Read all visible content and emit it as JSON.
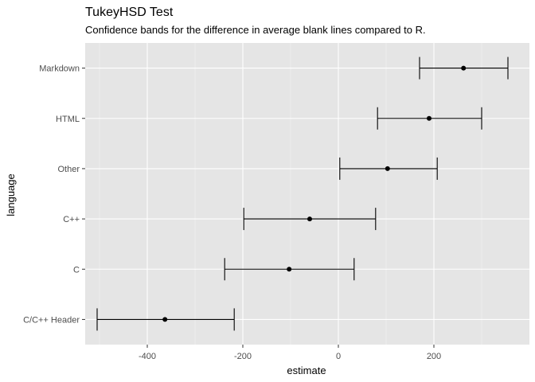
{
  "chart_data": {
    "type": "errorbar",
    "title": "TukeyHSD Test",
    "subtitle": "Confidence bands for the difference in average blank lines compared to R.",
    "xlabel": "estimate",
    "ylabel": "language",
    "xlim": [
      -530,
      400
    ],
    "x_ticks": [
      -400,
      -200,
      0,
      200
    ],
    "x_tick_labels": [
      "-400",
      "-200",
      "0",
      "200"
    ],
    "grid": true,
    "categories": [
      "Markdown",
      "HTML",
      "Other",
      "C++",
      "C",
      "C/C++ Header"
    ],
    "estimate": [
      262,
      190,
      103,
      -60,
      -103,
      -363
    ],
    "lower": [
      170,
      82,
      3,
      -198,
      -238,
      -505
    ],
    "upper": [
      355,
      300,
      207,
      78,
      33,
      -218
    ]
  },
  "colors": {
    "panel_background": "#e5e5e5",
    "grid_major": "#ffffff",
    "grid_minor": "#f2f2f2",
    "marks": "#000000",
    "tick_label": "#4d4d4d"
  }
}
